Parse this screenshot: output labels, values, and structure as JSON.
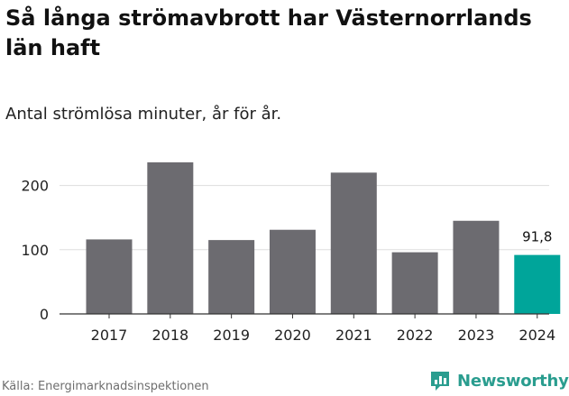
{
  "header": {
    "title": "Så långa strömavbrott har Västernorrlands län haft",
    "subtitle": "Antal strömlösa minuter, år för år."
  },
  "footer": {
    "source": "Källa: Energimarknadsinspektionen",
    "brand": "Newsworthy"
  },
  "colors": {
    "bar": "#6c6b70",
    "highlight": "#00a59a",
    "grid": "#dddddd",
    "brand": "#2a9d8f"
  },
  "chart_data": {
    "type": "bar",
    "title": "Så långa strömavbrott har Västernorrlands län haft",
    "subtitle": "Antal strömlösa minuter, år för år.",
    "categories": [
      "2017",
      "2018",
      "2019",
      "2020",
      "2021",
      "2022",
      "2023",
      "2024"
    ],
    "values": [
      116,
      236,
      115,
      131,
      220,
      96,
      145,
      91.8
    ],
    "highlight_index": 7,
    "data_labels": [
      {
        "index": 7,
        "text": "91,8"
      }
    ],
    "ylim": [
      0,
      250
    ],
    "yticks": [
      0,
      100,
      200
    ],
    "xlabel": "",
    "ylabel": "",
    "grid": true
  }
}
